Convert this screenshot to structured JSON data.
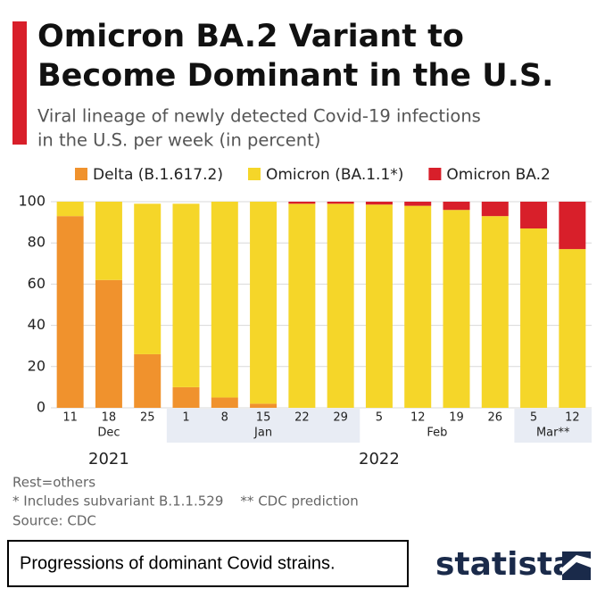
{
  "chart_data": {
    "type": "bar",
    "stacked": true,
    "title": [
      "Omicron BA.2 Variant to",
      "Become Dominant in the U.S."
    ],
    "subtitle": [
      "Viral lineage of newly detected Covid-19 infections",
      "in the U.S. per week (in percent)"
    ],
    "categories": [
      "11",
      "18",
      "25",
      "1",
      "8",
      "15",
      "22",
      "29",
      "5",
      "12",
      "19",
      "26",
      "5",
      "12"
    ],
    "month_labels": [
      "Dec",
      "Jan",
      "Feb",
      "Mar**"
    ],
    "year_labels": [
      "2021",
      "2022"
    ],
    "series": [
      {
        "name": "Delta (B.1.617.2)",
        "color": "#f0922d",
        "values": [
          93,
          62,
          26,
          10,
          5,
          2,
          0,
          0,
          0,
          0,
          0,
          0,
          0,
          0
        ]
      },
      {
        "name": "Omicron (BA.1.1*)",
        "color": "#f5d629",
        "values": [
          7,
          38,
          73,
          89,
          95,
          98,
          99,
          99,
          98.6,
          98,
          96,
          93,
          87,
          77
        ]
      },
      {
        "name": "Omicron BA.2",
        "color": "#d81f2a",
        "values": [
          0,
          0,
          0,
          0,
          0,
          0,
          1,
          1,
          1.4,
          2,
          4,
          7,
          13,
          23
        ]
      }
    ],
    "ylim": [
      0,
      100
    ],
    "yticks": [
      0,
      20,
      40,
      60,
      80,
      100
    ],
    "grid": true,
    "notes": [
      "Rest=others",
      "* Includes subvariant B.1.1.529    ** CDC prediction",
      "Source: CDC"
    ],
    "caption": "Progressions of dominant Covid strains.",
    "brand": "statista"
  }
}
